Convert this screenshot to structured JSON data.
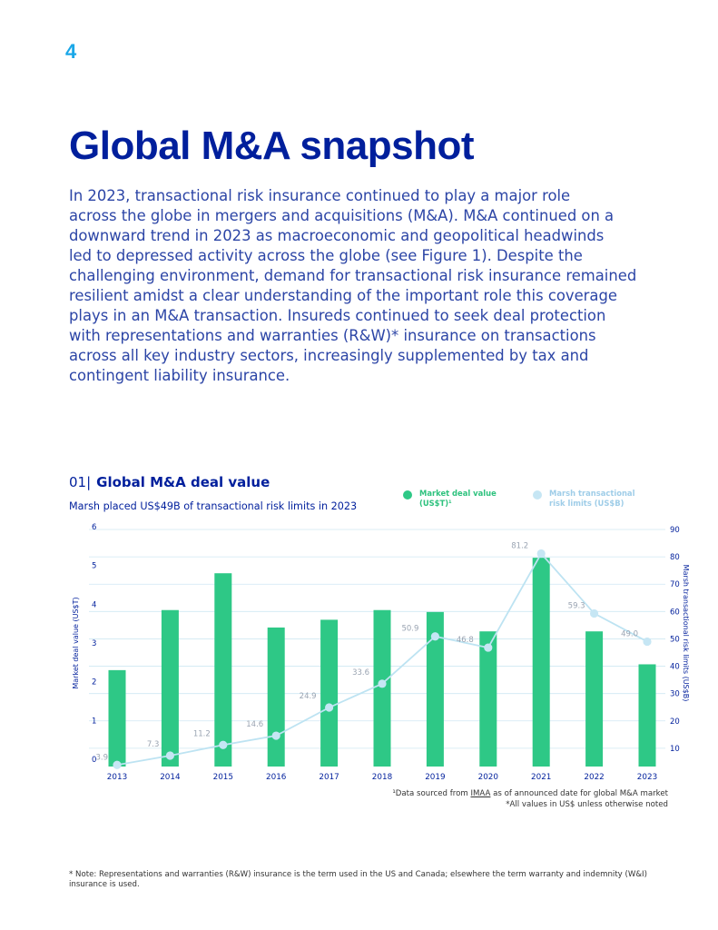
{
  "page": {
    "number": "4"
  },
  "heading": {
    "title": "Global M&A snapshot"
  },
  "intro": {
    "text": "In 2023, transactional risk insurance continued to play a major role\nacross the globe in mergers and acquisitions (M&A). M&A continued on a\ndownward trend in 2023 as macroeconomic and geopolitical headwinds\nled to depressed activity across the globe (see Figure 1). Despite the\nchallenging environment, demand for transactional risk insurance remained\nresilient amidst a clear understanding of the important role this coverage\nplays in an M&A transaction. Insureds continued to seek deal protection\nwith representations and warranties (R&W)* insurance on transactions\nacross all key industry sectors, increasingly supplemented by tax and\ncontingent liability insurance."
  },
  "figure": {
    "number": "01|",
    "title": "Global M&A deal value",
    "subtitle": "Marsh placed US$49B of transactional risk limits in 2023"
  },
  "legend": {
    "market": {
      "label1": "Market deal value",
      "label2": "(US$T)¹"
    },
    "marsh": {
      "label1": "Marsh transactional",
      "label2": "risk limits (US$B)"
    }
  },
  "colors": {
    "bar": "#2ec886",
    "line": "#bde3f2",
    "marker": "#c6e6f4",
    "grid": "#cfe8f3",
    "axis_text": "#001f9c",
    "line_label": "#9aa4b2"
  },
  "chart_data": {
    "type": "bar+line",
    "categories": [
      "2013",
      "2014",
      "2015",
      "2016",
      "2017",
      "2018",
      "2019",
      "2020",
      "2021",
      "2022",
      "2023"
    ],
    "series": [
      {
        "name": "Market deal value (US$T)",
        "axis": "left",
        "type": "bar",
        "values": [
          2.3,
          3.85,
          4.8,
          3.4,
          3.6,
          3.85,
          3.8,
          3.3,
          5.2,
          3.3,
          2.45
        ]
      },
      {
        "name": "Marsh transactional risk limits (US$B)",
        "axis": "right",
        "type": "line",
        "values": [
          3.9,
          7.3,
          11.2,
          14.6,
          24.9,
          33.6,
          50.9,
          46.8,
          81.2,
          59.3,
          49.0
        ],
        "labels": [
          "3.9",
          "7.3",
          "11.2",
          "14.6",
          "24.9",
          "33.6",
          "50.9",
          "46.8",
          "81.2",
          "59.3",
          "49.0"
        ]
      }
    ],
    "ylabel": "Market deal value (US$T)",
    "y2label": "Marsh transactional risk limits (US$B)",
    "ylim": [
      0,
      6
    ],
    "y2lim": [
      0,
      90
    ],
    "yticks": [
      "0",
      "1",
      "2",
      "3",
      "4",
      "5",
      "6"
    ],
    "y2ticks": [
      "10",
      "20",
      "30",
      "40",
      "50",
      "60",
      "70",
      "80",
      "90"
    ],
    "grid": true
  },
  "source": {
    "line1_prefix": "¹Data sourced from ",
    "line1_link": "IMAA",
    "line1_suffix": " as of announced date for global M&A market",
    "line2": "*All values in US$ unless otherwise noted"
  },
  "note": {
    "text": "* Note: Representations and warranties (R&W) insurance is the term used in the US and Canada; elsewhere the term warranty and indemnity (W&I) insurance is used."
  }
}
